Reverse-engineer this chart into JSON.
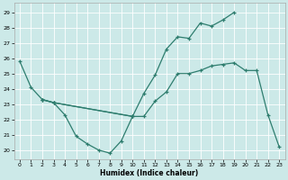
{
  "xlabel": "Humidex (Indice chaleur)",
  "background_color": "#cce9e8",
  "grid_color": "#ffffff",
  "line_color": "#2e7d6e",
  "xlim": [
    -0.5,
    23.5
  ],
  "ylim": [
    19.4,
    29.6
  ],
  "yticks": [
    20,
    21,
    22,
    23,
    24,
    25,
    26,
    27,
    28,
    29
  ],
  "xticks": [
    0,
    1,
    2,
    3,
    4,
    5,
    6,
    7,
    8,
    9,
    10,
    11,
    12,
    13,
    14,
    15,
    16,
    17,
    18,
    19,
    20,
    21,
    22,
    23
  ],
  "line_upper_x": [
    0,
    1,
    2,
    3,
    10,
    11,
    12,
    13,
    14,
    15,
    16,
    17,
    18,
    19
  ],
  "line_upper_y": [
    25.8,
    24.1,
    23.3,
    23.1,
    22.2,
    23.7,
    24.9,
    26.6,
    27.4,
    27.3,
    28.3,
    28.1,
    28.5,
    29.0
  ],
  "line_mid_x": [
    2,
    3,
    10,
    11,
    12,
    13,
    14,
    15,
    16,
    17,
    18,
    19,
    20,
    21,
    22,
    23
  ],
  "line_mid_y": [
    23.3,
    23.1,
    22.2,
    22.2,
    23.2,
    23.8,
    25.0,
    25.0,
    25.2,
    25.5,
    25.6,
    25.7,
    25.2,
    25.2,
    22.3,
    20.2
  ],
  "line_low_x": [
    2,
    3,
    4,
    5,
    6,
    7,
    8,
    9,
    10
  ],
  "line_low_y": [
    23.3,
    23.1,
    22.3,
    20.9,
    20.4,
    20.0,
    19.8,
    20.6,
    22.2
  ]
}
